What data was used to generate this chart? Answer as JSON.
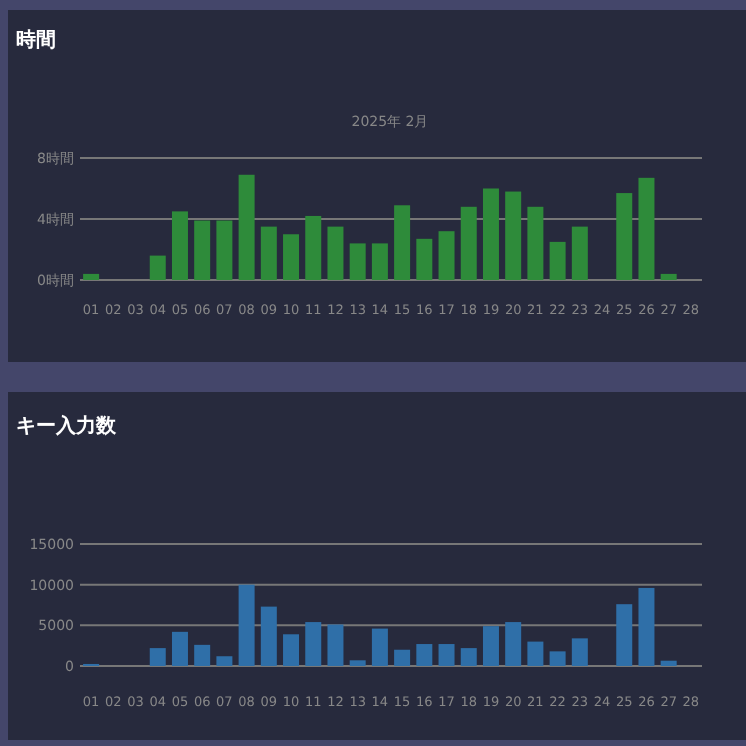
{
  "chart_data": [
    {
      "type": "bar",
      "title": "時間",
      "subtitle": "2025年 2月",
      "categories": [
        "01",
        "02",
        "03",
        "04",
        "05",
        "06",
        "07",
        "08",
        "09",
        "10",
        "11",
        "12",
        "13",
        "14",
        "15",
        "16",
        "17",
        "18",
        "19",
        "20",
        "21",
        "22",
        "23",
        "24",
        "25",
        "26",
        "27",
        "28"
      ],
      "values": [
        0.4,
        0,
        0,
        1.6,
        4.5,
        3.9,
        3.9,
        6.9,
        3.5,
        3.0,
        4.2,
        3.5,
        2.4,
        2.4,
        4.9,
        2.7,
        3.2,
        4.8,
        6.0,
        5.8,
        4.8,
        2.5,
        3.5,
        0,
        5.7,
        6.7,
        0.4,
        0
      ],
      "color": "#2e8b3a",
      "ylim": [
        0,
        8
      ],
      "yticks": [
        {
          "value": 0,
          "label": "0時間"
        },
        {
          "value": 4,
          "label": "4時間"
        },
        {
          "value": 8,
          "label": "8時間"
        }
      ],
      "grid": "y"
    },
    {
      "type": "bar",
      "title": "キー入力数",
      "categories": [
        "01",
        "02",
        "03",
        "04",
        "05",
        "06",
        "07",
        "08",
        "09",
        "10",
        "11",
        "12",
        "13",
        "14",
        "15",
        "16",
        "17",
        "18",
        "19",
        "20",
        "21",
        "22",
        "23",
        "24",
        "25",
        "26",
        "27",
        "28"
      ],
      "values": [
        250,
        0,
        0,
        2200,
        4200,
        2600,
        1200,
        10000,
        7300,
        3900,
        5400,
        5100,
        700,
        4600,
        2000,
        2700,
        2700,
        2200,
        4900,
        5400,
        3000,
        1800,
        3400,
        0,
        7600,
        9600,
        650,
        0
      ],
      "color": "#2f6fa8",
      "ylim": [
        0,
        15000
      ],
      "yticks": [
        0,
        5000,
        10000,
        15000
      ],
      "grid": "y"
    }
  ]
}
